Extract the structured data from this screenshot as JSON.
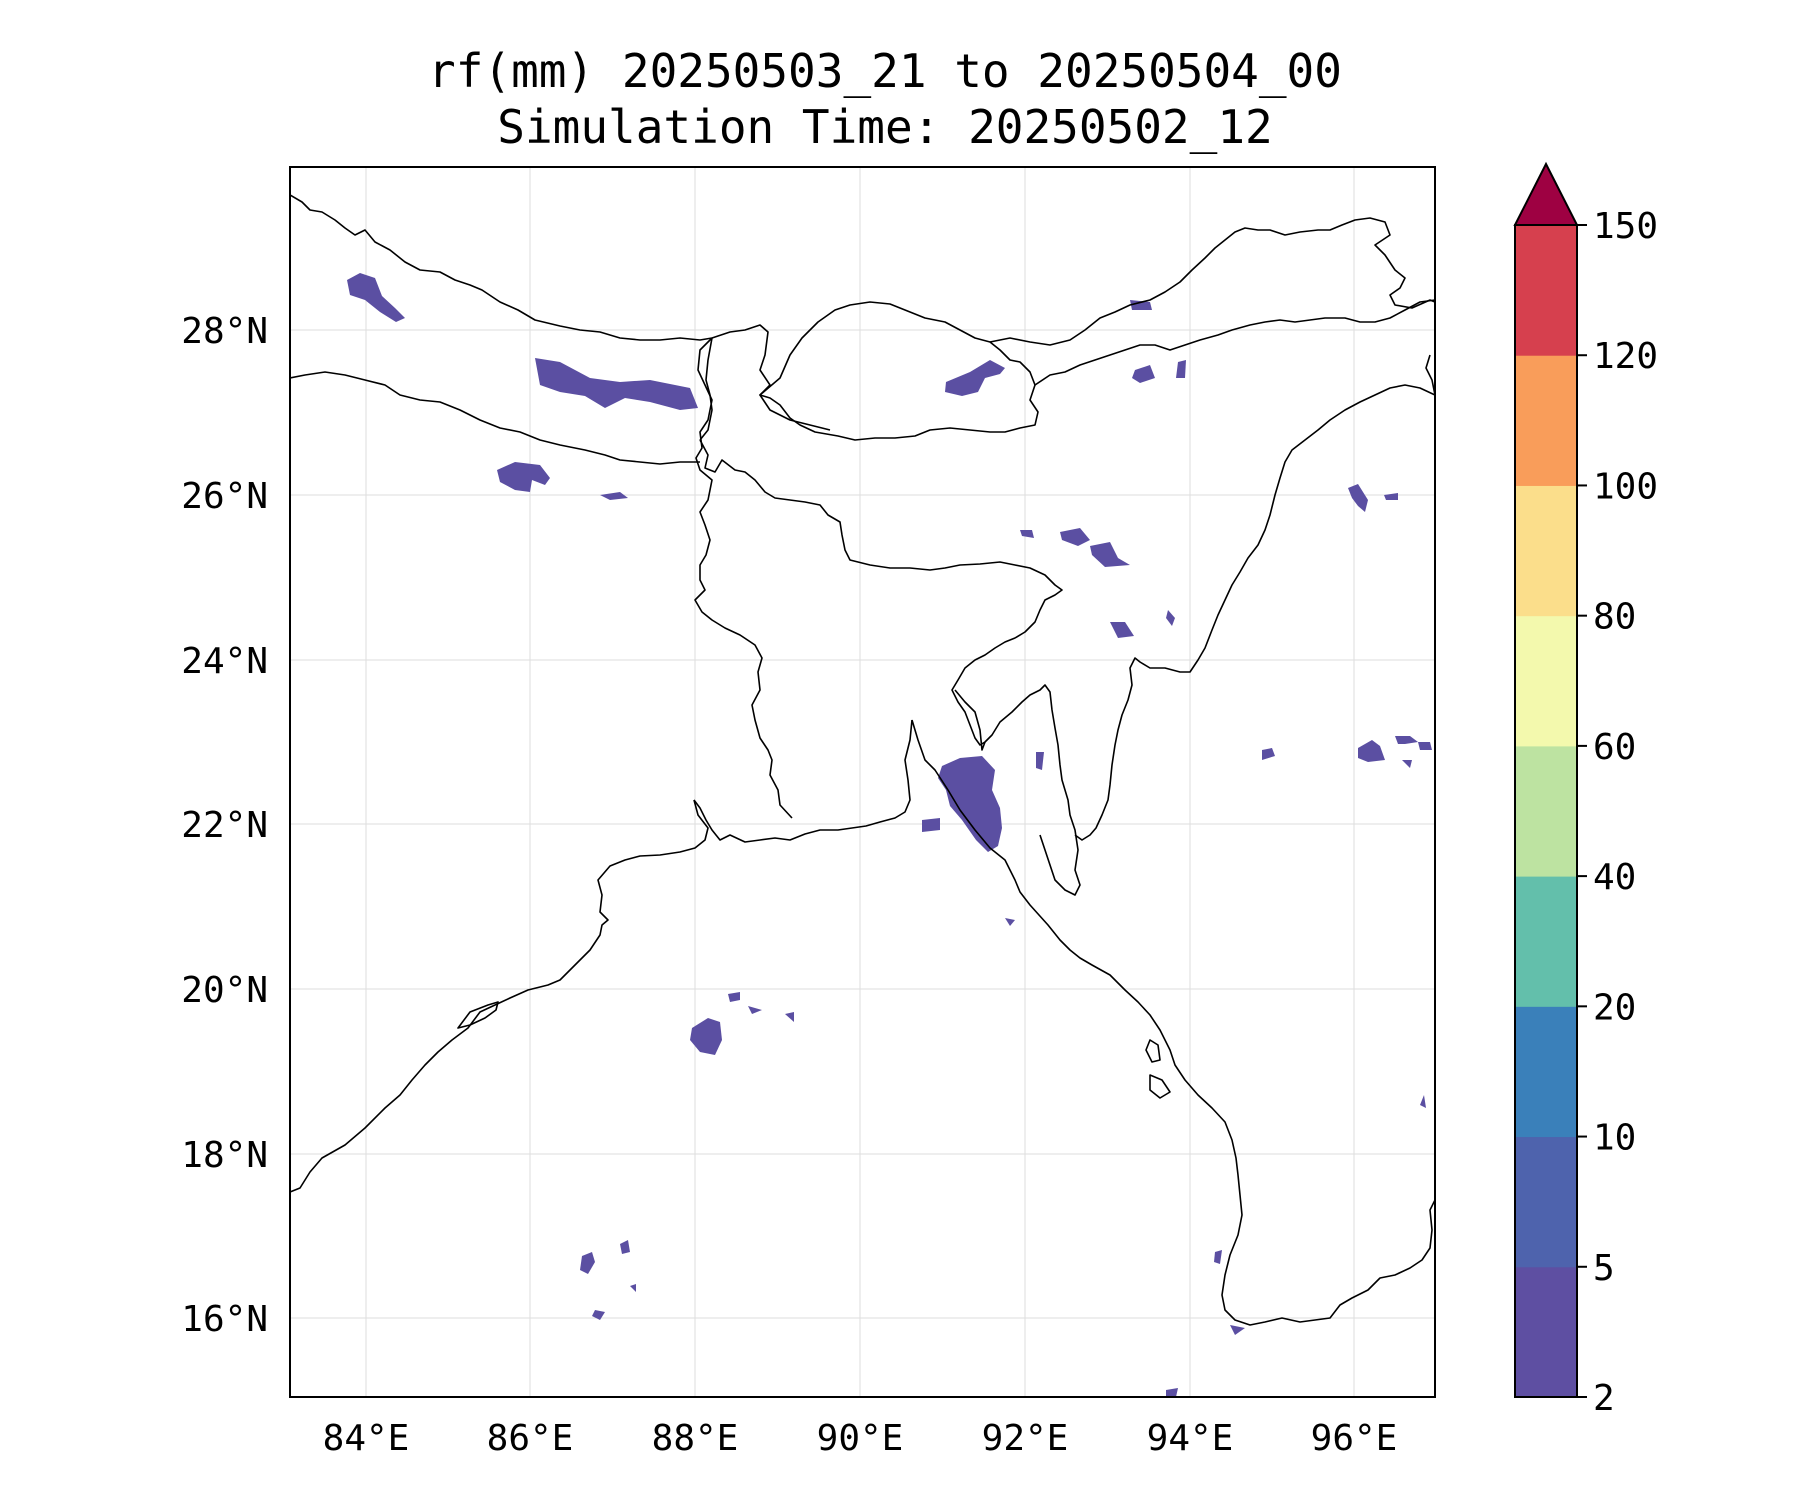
{
  "title": {
    "line1": "rf(mm) 20250503_21 to 20250504_00",
    "line2": "Simulation Time: 20250502_12"
  },
  "map": {
    "lon_ticks": [
      "84°E",
      "86°E",
      "88°E",
      "90°E",
      "92°E",
      "94°E",
      "96°E"
    ],
    "lat_ticks": [
      "16°N",
      "18°N",
      "20°N",
      "22°N",
      "24°N",
      "26°N",
      "28°N"
    ],
    "extent": {
      "lon": [
        83.1,
        97.0
      ],
      "lat": [
        15.0,
        29.9
      ]
    },
    "rain_color": "#5b4fa2"
  },
  "colorbar": {
    "levels": [
      "2",
      "5",
      "10",
      "20",
      "40",
      "60",
      "80",
      "100",
      "120",
      "150"
    ],
    "colors": [
      "#5e4fa2",
      "#4e63ad",
      "#3a80ba",
      "#63bfab",
      "#bde3a1",
      "#f3f9ad",
      "#fbde8b",
      "#f99d5a",
      "#d6404e",
      "#9e0142"
    ],
    "extend": "max"
  }
}
